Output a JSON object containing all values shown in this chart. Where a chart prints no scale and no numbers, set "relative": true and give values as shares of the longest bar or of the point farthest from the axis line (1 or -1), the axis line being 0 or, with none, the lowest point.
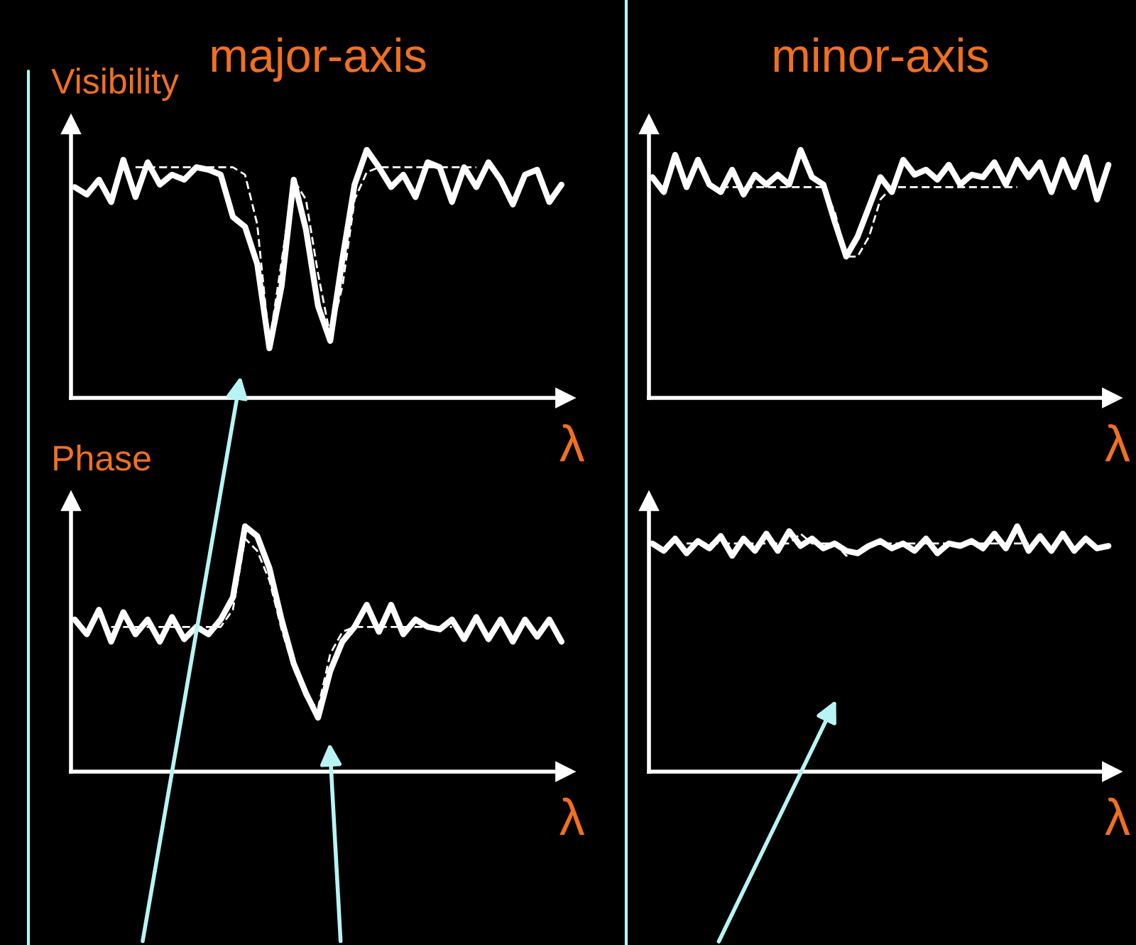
{
  "chart_data": [
    {
      "type": "line",
      "relative": true,
      "title": "major-axis",
      "ylabel": "Visibility",
      "xlabel": "λ",
      "categories": [
        null,
        null,
        null,
        null,
        null,
        null,
        null,
        null,
        null,
        null,
        null,
        null,
        null,
        null,
        null,
        null,
        null,
        null,
        null,
        null,
        null,
        null,
        null,
        null,
        null,
        null,
        null,
        null,
        null,
        null,
        null,
        null,
        null,
        null,
        null,
        null,
        null,
        null,
        null,
        null,
        null
      ],
      "series": [
        {
          "color": "#ffffff",
          "line_style": "solid",
          "values": [
            0.85,
            0.82,
            0.88,
            0.79,
            0.96,
            0.81,
            0.95,
            0.86,
            0.9,
            0.88,
            0.93,
            0.92,
            0.9,
            0.73,
            0.69,
            0.54,
            0.2,
            0.45,
            0.88,
            0.68,
            0.37,
            0.23,
            0.56,
            0.86,
            1.0,
            0.93,
            0.85,
            0.9,
            0.81,
            0.95,
            0.93,
            0.79,
            0.93,
            0.85,
            0.95,
            0.88,
            0.78,
            0.9,
            0.92,
            0.79,
            0.86
          ]
        },
        {
          "color": "#ffffff",
          "line_style": "dashed",
          "values": [
            null,
            null,
            null,
            null,
            null,
            0.93,
            0.93,
            0.93,
            0.93,
            0.93,
            0.93,
            0.93,
            0.93,
            0.93,
            0.9,
            0.7,
            0.22,
            0.55,
            0.88,
            0.8,
            0.5,
            0.25,
            0.45,
            0.8,
            0.91,
            0.93,
            0.93,
            0.93,
            0.93,
            0.93,
            0.93,
            0.93,
            0.93,
            0.93,
            null,
            null,
            null,
            null,
            null,
            null,
            null
          ]
        }
      ]
    },
    {
      "type": "line",
      "relative": true,
      "title": "minor-axis",
      "xlabel": "λ",
      "categories": [
        null,
        null,
        null,
        null,
        null,
        null,
        null,
        null,
        null,
        null,
        null,
        null,
        null,
        null,
        null,
        null,
        null,
        null,
        null,
        null,
        null,
        null,
        null,
        null,
        null,
        null,
        null,
        null,
        null,
        null,
        null,
        null,
        null,
        null,
        null,
        null,
        null,
        null,
        null,
        null,
        null
      ],
      "series": [
        {
          "color": "#ffffff",
          "line_style": "solid",
          "values": [
            0.89,
            0.83,
            0.98,
            0.85,
            0.96,
            0.86,
            0.83,
            0.92,
            0.82,
            0.9,
            0.86,
            0.9,
            0.86,
            1.0,
            0.89,
            0.86,
            0.71,
            0.57,
            0.65,
            0.77,
            0.89,
            0.83,
            0.96,
            0.9,
            0.92,
            0.88,
            0.94,
            0.86,
            0.9,
            0.89,
            0.95,
            0.86,
            0.96,
            0.89,
            0.95,
            0.83,
            0.96,
            0.85,
            0.97,
            0.8,
            0.94
          ]
        },
        {
          "color": "#ffffff",
          "line_style": "dashed",
          "values": [
            null,
            null,
            null,
            null,
            null,
            null,
            0.85,
            0.85,
            0.85,
            0.85,
            0.85,
            0.85,
            0.85,
            0.85,
            0.85,
            0.85,
            0.75,
            0.57,
            0.57,
            0.65,
            0.8,
            0.85,
            0.85,
            0.85,
            0.85,
            0.85,
            0.85,
            0.85,
            0.85,
            0.85,
            0.85,
            0.85,
            0.85,
            null,
            null,
            null,
            null,
            null,
            null,
            null,
            null
          ]
        }
      ]
    },
    {
      "type": "line",
      "relative": true,
      "ylabel": "Phase",
      "xlabel": "λ",
      "categories": [
        null,
        null,
        null,
        null,
        null,
        null,
        null,
        null,
        null,
        null,
        null,
        null,
        null,
        null,
        null,
        null,
        null,
        null,
        null,
        null,
        null,
        null,
        null,
        null,
        null,
        null,
        null,
        null,
        null,
        null,
        null,
        null,
        null,
        null,
        null,
        null,
        null,
        null,
        null,
        null,
        null
      ],
      "series": [
        {
          "color": "#ffffff",
          "line_style": "solid",
          "values": [
            0.62,
            0.56,
            0.66,
            0.53,
            0.65,
            0.56,
            0.62,
            0.53,
            0.63,
            0.54,
            0.59,
            0.56,
            0.62,
            0.71,
            1.0,
            0.96,
            0.83,
            0.62,
            0.44,
            0.32,
            0.22,
            0.41,
            0.53,
            0.59,
            0.68,
            0.57,
            0.68,
            0.56,
            0.62,
            0.59,
            0.58,
            0.62,
            0.54,
            0.63,
            0.54,
            0.62,
            0.53,
            0.62,
            0.55,
            0.62,
            0.53
          ]
        },
        {
          "color": "#ffffff",
          "line_style": "dashed",
          "values": [
            null,
            null,
            null,
            0.59,
            0.59,
            0.59,
            0.59,
            0.59,
            0.59,
            0.59,
            0.59,
            0.59,
            0.59,
            0.66,
            0.95,
            0.9,
            0.78,
            0.58,
            0.42,
            0.3,
            0.26,
            0.48,
            0.57,
            0.59,
            0.59,
            0.59,
            0.59,
            0.59,
            0.59,
            0.59,
            0.59,
            0.59,
            null,
            null,
            null,
            null,
            null,
            null,
            null,
            null,
            null
          ]
        }
      ]
    },
    {
      "type": "line",
      "relative": true,
      "xlabel": "λ",
      "categories": [
        null,
        null,
        null,
        null,
        null,
        null,
        null,
        null,
        null,
        null,
        null,
        null,
        null,
        null,
        null,
        null,
        null,
        null,
        null,
        null,
        null,
        null,
        null,
        null,
        null,
        null,
        null,
        null,
        null,
        null,
        null,
        null,
        null,
        null,
        null,
        null,
        null,
        null,
        null,
        null,
        null
      ],
      "series": [
        {
          "color": "#ffffff",
          "line_style": "solid",
          "values": [
            0.93,
            0.9,
            0.95,
            0.89,
            0.94,
            0.91,
            0.96,
            0.88,
            0.95,
            0.9,
            0.97,
            0.9,
            0.98,
            0.92,
            0.95,
            0.91,
            0.93,
            0.9,
            0.89,
            0.92,
            0.94,
            0.91,
            0.93,
            0.9,
            0.95,
            0.89,
            0.93,
            0.92,
            0.94,
            0.91,
            0.97,
            0.91,
            1.0,
            0.9,
            0.96,
            0.9,
            0.97,
            0.9,
            0.95,
            0.91,
            0.92
          ]
        },
        {
          "color": "#ffffff",
          "line_style": "dashed",
          "values": [
            null,
            null,
            null,
            0.93,
            0.93,
            0.93,
            0.93,
            0.93,
            0.93,
            0.93,
            0.93,
            0.93,
            0.93,
            0.97,
            0.93,
            0.93,
            0.93,
            0.88,
            0.9,
            0.93,
            0.93,
            0.93,
            0.93,
            0.93,
            0.93,
            0.93,
            0.93,
            0.93,
            0.93,
            0.93,
            0.93,
            0.93,
            0.93,
            0.93,
            null,
            null,
            null,
            null,
            null,
            null,
            null
          ]
        }
      ]
    }
  ]
}
